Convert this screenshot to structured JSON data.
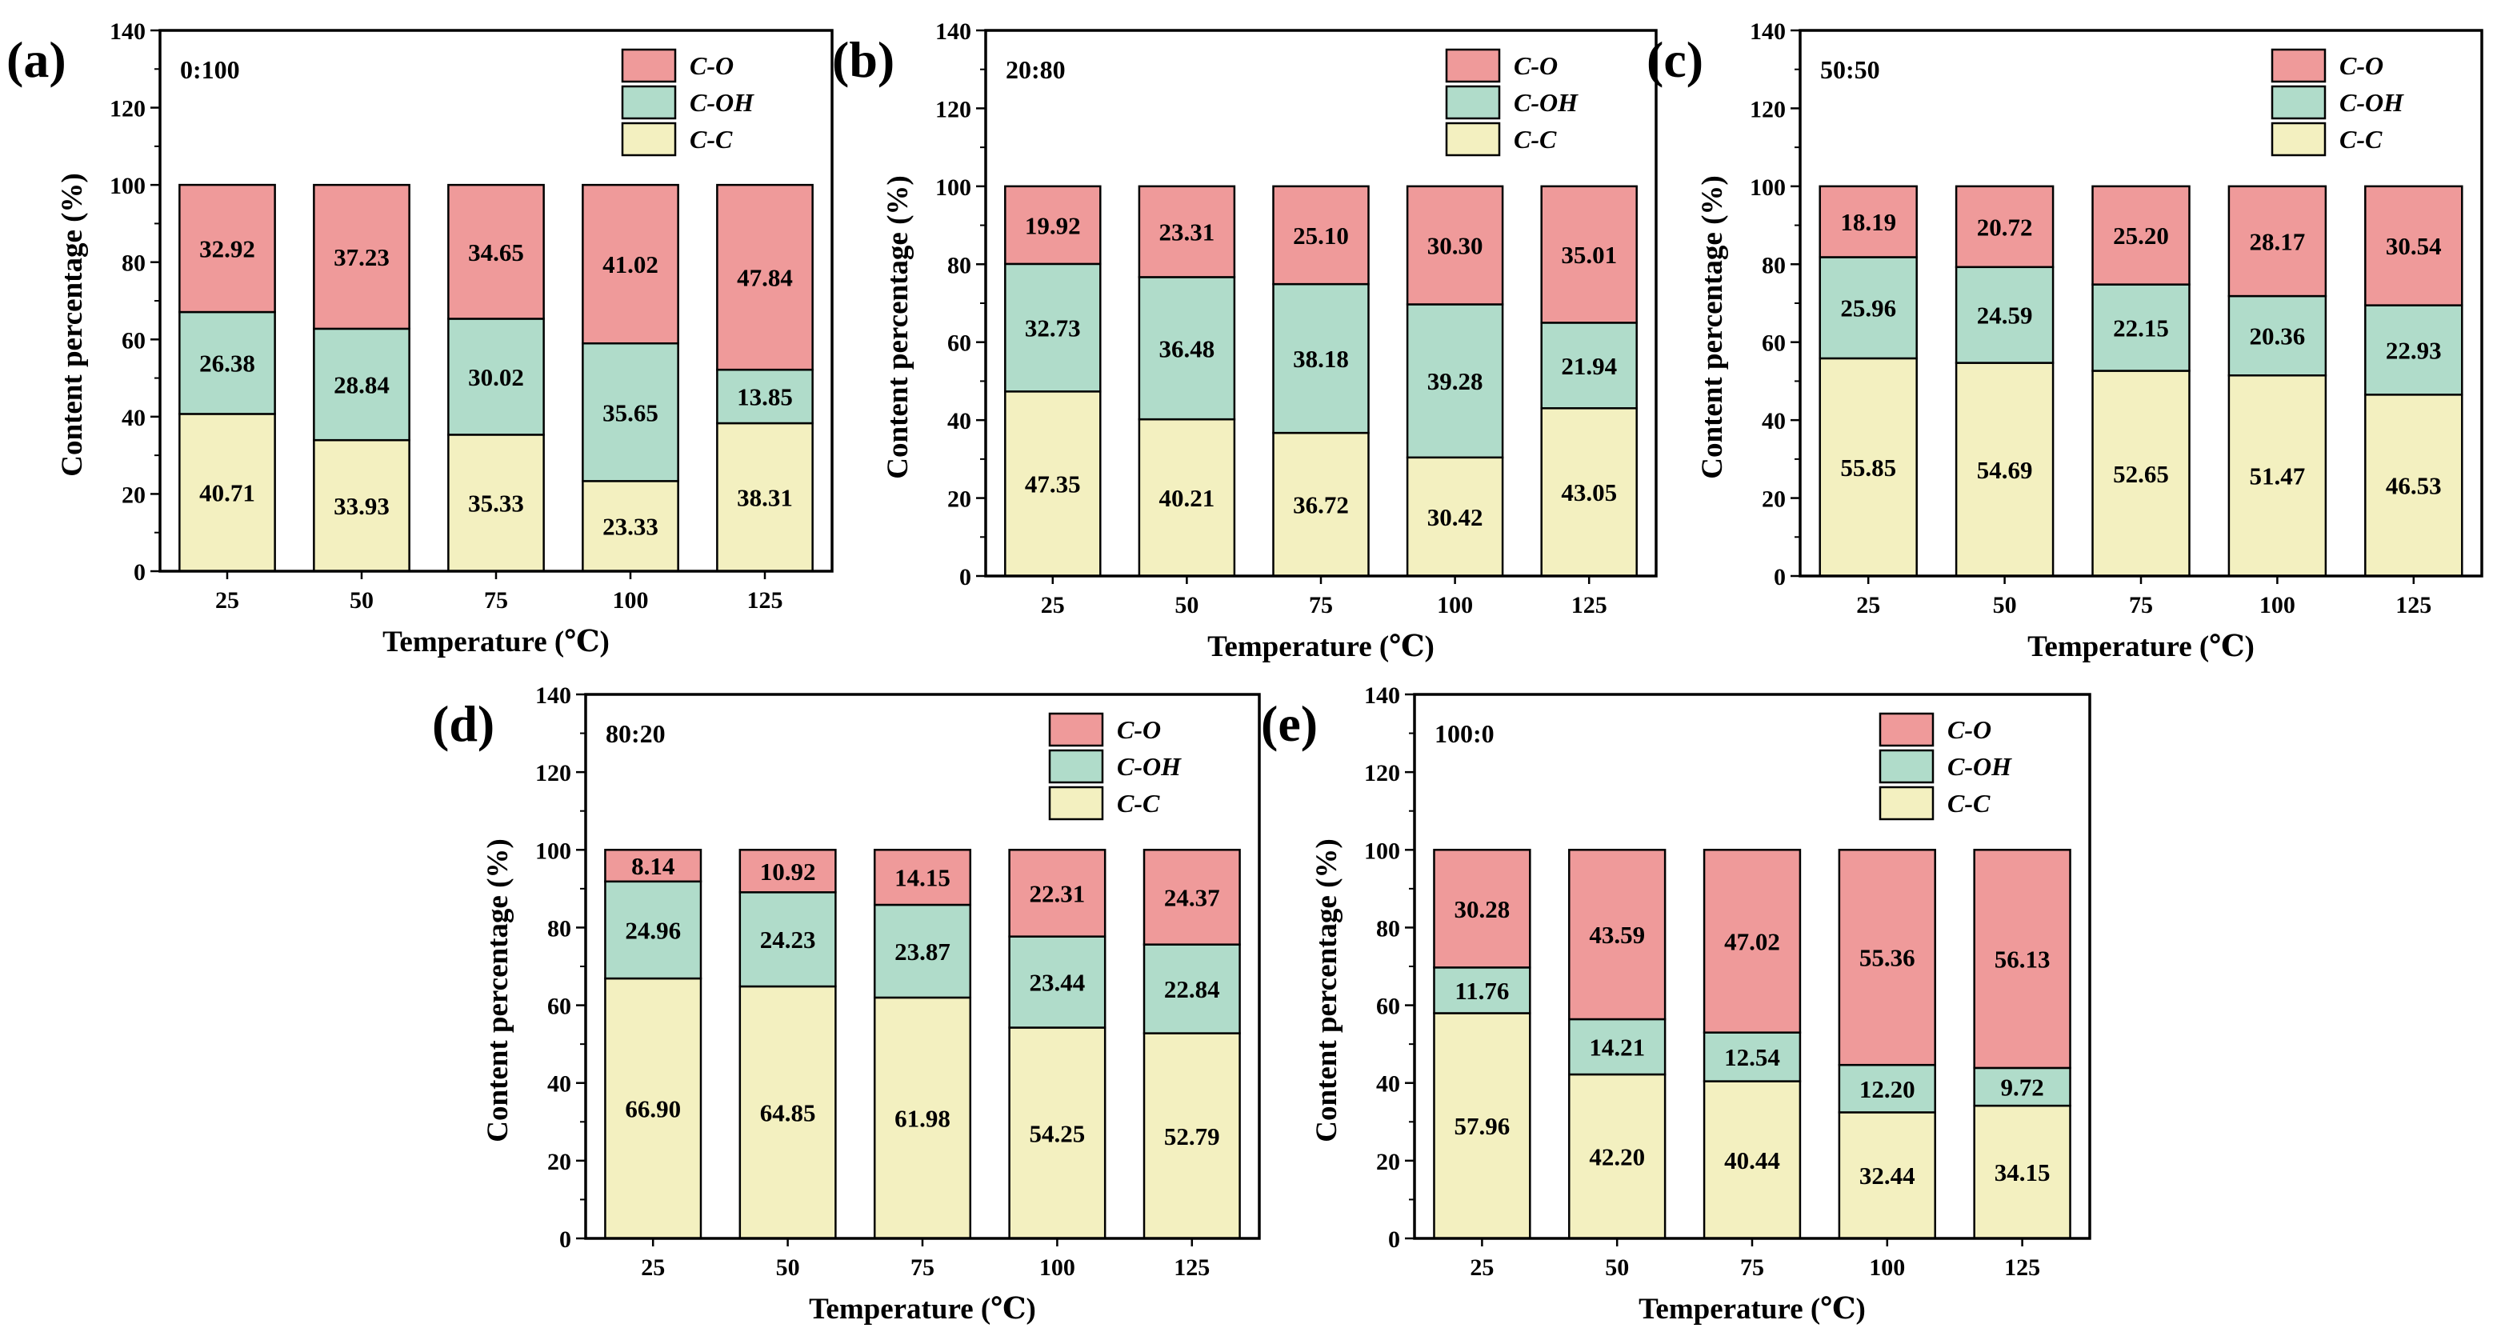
{
  "colors": {
    "c_c": "#f3f0c0",
    "c_oh": "#b0dcca",
    "c_o": "#ef9a9a",
    "frame": "#000000"
  },
  "legend": {
    "c_o": "C-O",
    "c_oh": "C-OH",
    "c_c": "C-C"
  },
  "chart_data": [
    {
      "type": "bar",
      "stacked": true,
      "panel_label": "(a)",
      "ratio_label": "0:100",
      "xlabel": "Temperature (℃)",
      "ylabel": "Content percentage (%)",
      "ylim": [
        0,
        140
      ],
      "yticks": [
        "0",
        "20",
        "40",
        "60",
        "80",
        "100",
        "120",
        "140"
      ],
      "categories": [
        "25",
        "50",
        "75",
        "100",
        "125"
      ],
      "series": [
        {
          "name": "C-C",
          "values": [
            40.71,
            33.93,
            35.33,
            23.33,
            38.31
          ],
          "labels": [
            "40.71",
            "33.93",
            "35.33",
            "23.33",
            "38.31"
          ]
        },
        {
          "name": "C-OH",
          "values": [
            26.38,
            28.84,
            30.02,
            35.65,
            13.85
          ],
          "labels": [
            "26.38",
            "28.84",
            "30.02",
            "35.65",
            "13.85"
          ]
        },
        {
          "name": "C-O",
          "values": [
            32.92,
            37.23,
            34.65,
            41.02,
            47.84
          ],
          "labels": [
            "32.92",
            "37.23",
            "34.65",
            "41.02",
            "47.84"
          ]
        }
      ]
    },
    {
      "type": "bar",
      "stacked": true,
      "panel_label": "(b)",
      "ratio_label": "20:80",
      "xlabel": "Temperature (℃)",
      "ylabel": "Content percentage (%)",
      "ylim": [
        0,
        140
      ],
      "yticks": [
        "0",
        "20",
        "40",
        "60",
        "80",
        "100",
        "120",
        "140"
      ],
      "categories": [
        "25",
        "50",
        "75",
        "100",
        "125"
      ],
      "series": [
        {
          "name": "C-C",
          "values": [
            47.35,
            40.21,
            36.72,
            30.42,
            43.05
          ],
          "labels": [
            "47.35",
            "40.21",
            "36.72",
            "30.42",
            "43.05"
          ]
        },
        {
          "name": "C-OH",
          "values": [
            32.73,
            36.48,
            38.18,
            39.28,
            21.94
          ],
          "labels": [
            "32.73",
            "36.48",
            "38.18",
            "39.28",
            "21.94"
          ]
        },
        {
          "name": "C-O",
          "values": [
            19.92,
            23.31,
            25.1,
            30.3,
            35.01
          ],
          "labels": [
            "19.92",
            "23.31",
            "25.10",
            "30.30",
            "35.01"
          ]
        }
      ]
    },
    {
      "type": "bar",
      "stacked": true,
      "panel_label": "(c)",
      "ratio_label": "50:50",
      "xlabel": "Temperature (℃)",
      "ylabel": "Content percentage (%)",
      "ylim": [
        0,
        140
      ],
      "yticks": [
        "0",
        "20",
        "40",
        "60",
        "80",
        "100",
        "120",
        "140"
      ],
      "categories": [
        "25",
        "50",
        "75",
        "100",
        "125"
      ],
      "series": [
        {
          "name": "C-C",
          "values": [
            55.85,
            54.69,
            52.65,
            51.47,
            46.53
          ],
          "labels": [
            "55.85",
            "54.69",
            "52.65",
            "51.47",
            "46.53"
          ]
        },
        {
          "name": "C-OH",
          "values": [
            25.96,
            24.59,
            22.15,
            20.36,
            22.93
          ],
          "labels": [
            "25.96",
            "24.59",
            "22.15",
            "20.36",
            "22.93"
          ]
        },
        {
          "name": "C-O",
          "values": [
            18.19,
            20.72,
            25.2,
            28.17,
            30.54
          ],
          "labels": [
            "18.19",
            "20.72",
            "25.20",
            "28.17",
            "30.54"
          ]
        }
      ]
    },
    {
      "type": "bar",
      "stacked": true,
      "panel_label": "(d)",
      "ratio_label": "80:20",
      "xlabel": "Temperature (℃)",
      "ylabel": "Content percentage (%)",
      "ylim": [
        0,
        140
      ],
      "yticks": [
        "0",
        "20",
        "40",
        "60",
        "80",
        "100",
        "120",
        "140"
      ],
      "categories": [
        "25",
        "50",
        "75",
        "100",
        "125"
      ],
      "series": [
        {
          "name": "C-C",
          "values": [
            66.9,
            64.85,
            61.98,
            54.25,
            52.79
          ],
          "labels": [
            "66.90",
            "64.85",
            "61.98",
            "54.25",
            "52.79"
          ]
        },
        {
          "name": "C-OH",
          "values": [
            24.96,
            24.23,
            23.87,
            23.44,
            22.84
          ],
          "labels": [
            "24.96",
            "24.23",
            "23.87",
            "23.44",
            "22.84"
          ]
        },
        {
          "name": "C-O",
          "values": [
            8.14,
            10.92,
            14.15,
            22.31,
            24.37
          ],
          "labels": [
            "8.14",
            "10.92",
            "14.15",
            "22.31",
            "24.37"
          ]
        }
      ]
    },
    {
      "type": "bar",
      "stacked": true,
      "panel_label": "(e)",
      "ratio_label": "100:0",
      "xlabel": "Temperature (℃)",
      "ylabel": "Content percentage (%)",
      "ylim": [
        0,
        140
      ],
      "yticks": [
        "0",
        "20",
        "40",
        "60",
        "80",
        "100",
        "120",
        "140"
      ],
      "categories": [
        "25",
        "50",
        "75",
        "100",
        "125"
      ],
      "series": [
        {
          "name": "C-C",
          "values": [
            57.96,
            42.2,
            40.44,
            32.44,
            34.15
          ],
          "labels": [
            "57.96",
            "42.20",
            "40.44",
            "32.44",
            "34.15"
          ]
        },
        {
          "name": "C-OH",
          "values": [
            11.76,
            14.21,
            12.54,
            12.2,
            9.72
          ],
          "labels": [
            "11.76",
            "14.21",
            "12.54",
            "12.20",
            "9.72"
          ]
        },
        {
          "name": "C-O",
          "values": [
            30.28,
            43.59,
            47.02,
            55.36,
            56.13
          ],
          "labels": [
            "30.28",
            "43.59",
            "47.02",
            "55.36",
            "56.13"
          ]
        }
      ]
    }
  ]
}
